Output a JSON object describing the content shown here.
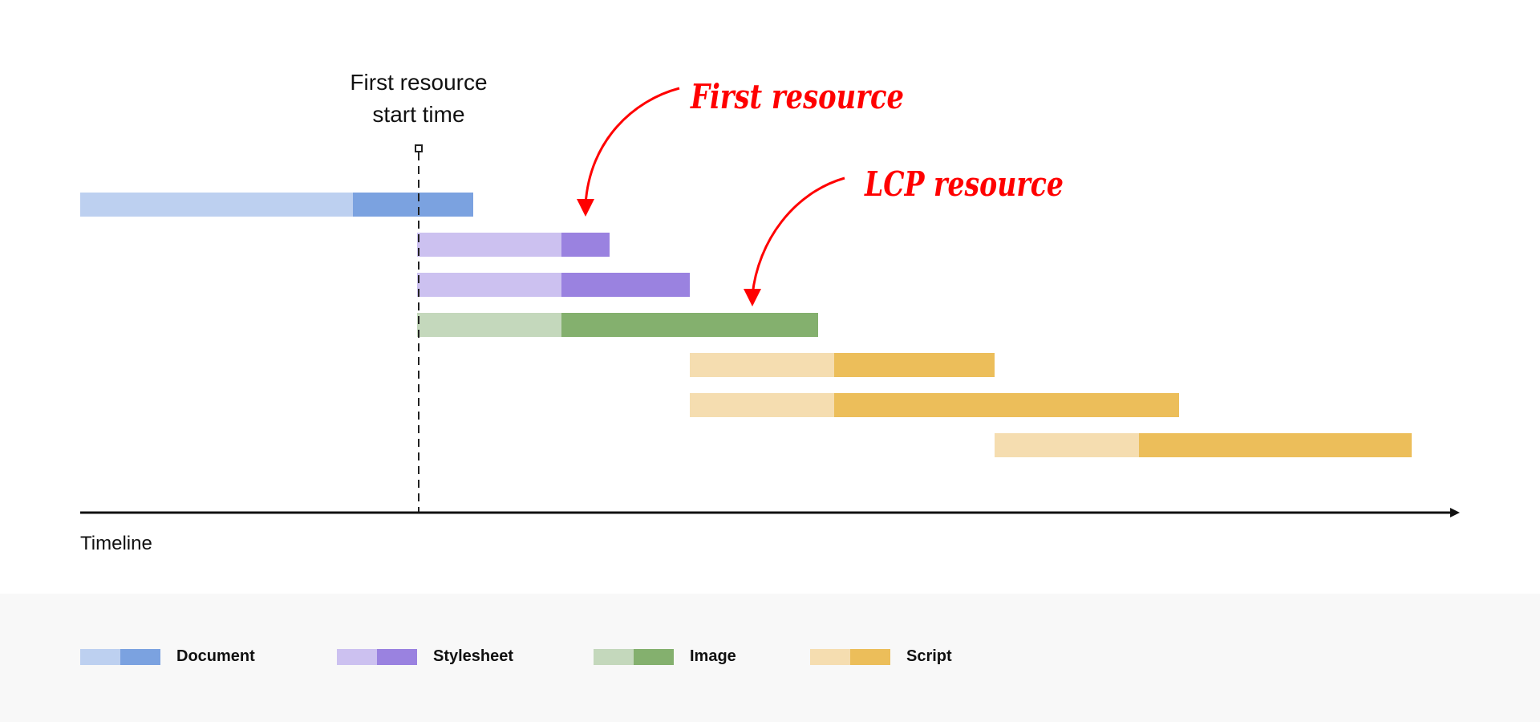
{
  "marker_label": [
    "First resource",
    "start time"
  ],
  "axis_label": "Timeline",
  "annotations": [
    {
      "text": "First resource",
      "color": "#ff0000"
    },
    {
      "text": "LCP resource",
      "color": "#ff0000"
    }
  ],
  "colors": {
    "Document": {
      "light": "#bdd0f0",
      "dark": "#7ba2e0"
    },
    "Stylesheet": {
      "light": "#ccc1f0",
      "dark": "#9a82e0"
    },
    "Image": {
      "light": "#c4d8bc",
      "dark": "#84b06e"
    },
    "Script": {
      "light": "#f5ddb0",
      "dark": "#ecbe5a"
    }
  },
  "chart_data": {
    "type": "waterfall",
    "xlabel": "Timeline",
    "rows": [
      {
        "type": "Document",
        "start": 0,
        "split": 34,
        "end": 49
      },
      {
        "type": "Stylesheet",
        "start": 42,
        "split": 60,
        "end": 66
      },
      {
        "type": "Stylesheet",
        "start": 42,
        "split": 60,
        "end": 76
      },
      {
        "type": "Image",
        "start": 42,
        "split": 60,
        "end": 92
      },
      {
        "type": "Script",
        "start": 76,
        "split": 94,
        "end": 114
      },
      {
        "type": "Script",
        "start": 76,
        "split": 94,
        "end": 137
      },
      {
        "type": "Script",
        "start": 114,
        "split": 132,
        "end": 166
      }
    ],
    "marker_x": 42,
    "xlim": [
      0,
      172
    ]
  },
  "legend": [
    {
      "label": "Document",
      "key": "Document"
    },
    {
      "label": "Stylesheet",
      "key": "Stylesheet"
    },
    {
      "label": "Image",
      "key": "Image"
    },
    {
      "label": "Script",
      "key": "Script"
    }
  ]
}
